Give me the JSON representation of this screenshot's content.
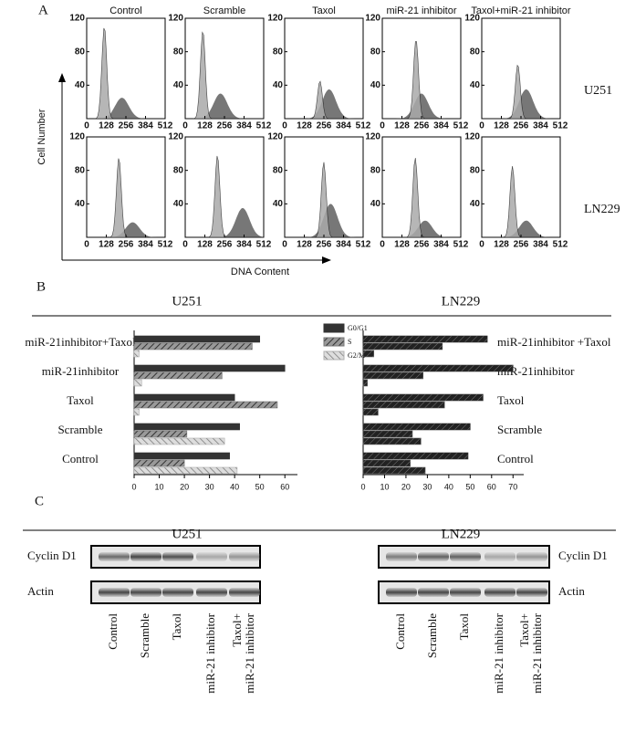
{
  "panel_a": {
    "label": "A",
    "columns": [
      "Control",
      "Scramble",
      "Taxol",
      "miR-21 inhibitor",
      "Taxol+miR-21 inhibitor"
    ],
    "y_label": "Cell Number",
    "x_label": "DNA Content",
    "xlim": [
      0,
      512
    ],
    "xticks": [
      0,
      128,
      256,
      384,
      512
    ],
    "ylim": [
      0,
      120
    ],
    "yticks": [
      40,
      80,
      120
    ],
    "rows": [
      {
        "name": "U251",
        "histograms": [
          {
            "g1": {
              "x": 115,
              "y": 110
            },
            "g2": {
              "x": 230,
              "y": 25
            }
          },
          {
            "g1": {
              "x": 115,
              "y": 105
            },
            "g2": {
              "x": 230,
              "y": 30
            }
          },
          {
            "g1": {
              "x": 230,
              "y": 45
            },
            "g2": {
              "x": 290,
              "y": 35
            }
          },
          {
            "g1": {
              "x": 220,
              "y": 95
            },
            "g2": {
              "x": 255,
              "y": 30
            }
          },
          {
            "g1": {
              "x": 235,
              "y": 65
            },
            "g2": {
              "x": 290,
              "y": 35
            }
          }
        ]
      },
      {
        "name": "LN229",
        "histograms": [
          {
            "g1": {
              "x": 210,
              "y": 95
            },
            "g2": {
              "x": 300,
              "y": 18
            }
          },
          {
            "g1": {
              "x": 210,
              "y": 98
            },
            "g2": {
              "x": 375,
              "y": 35
            }
          },
          {
            "g1": {
              "x": 255,
              "y": 90
            },
            "g2": {
              "x": 300,
              "y": 40
            }
          },
          {
            "g1": {
              "x": 215,
              "y": 95
            },
            "g2": {
              "x": 280,
              "y": 20
            }
          },
          {
            "g1": {
              "x": 200,
              "y": 85
            },
            "g2": {
              "x": 290,
              "y": 20
            }
          }
        ]
      }
    ]
  },
  "panel_b_label": "B",
  "chart_data": [
    {
      "type": "bar",
      "orientation": "horizontal",
      "title": "U251",
      "categories": [
        "miR-21inhibitor+Taxol",
        "miR-21inhibitor",
        "Taxol",
        "Scramble",
        "Control"
      ],
      "series": [
        {
          "name": "G0/G1",
          "color": "#333333",
          "values": [
            50,
            60,
            40,
            42,
            38
          ]
        },
        {
          "name": "S",
          "color": "#777777",
          "values": [
            47,
            35,
            57,
            21,
            20
          ]
        },
        {
          "name": "G2/M",
          "color": "#b0b0b0",
          "values": [
            2,
            3,
            2,
            36,
            41
          ]
        }
      ],
      "xlim": [
        0,
        65
      ],
      "xticks": [
        0,
        10,
        20,
        30,
        40,
        50,
        60
      ]
    },
    {
      "type": "bar",
      "orientation": "horizontal",
      "title": "LN229",
      "categories": [
        "miR-21inhibitor +Taxol",
        "miR-21inhibitor",
        "Taxol",
        "Scramble",
        "Control"
      ],
      "series": [
        {
          "color": "#333333",
          "values": [
            58,
            70,
            56,
            50,
            49
          ]
        },
        {
          "color": "#555555",
          "values": [
            37,
            28,
            38,
            23,
            22
          ]
        },
        {
          "color": "#666666",
          "values": [
            5,
            2,
            7,
            27,
            29
          ]
        }
      ],
      "xlim": [
        0,
        75
      ],
      "xticks": [
        0,
        10,
        20,
        30,
        40,
        50,
        60,
        70
      ]
    }
  ],
  "panel_c": {
    "label": "C",
    "blots": [
      {
        "title": "U251",
        "rows": [
          "Cyclin D1",
          "Actin"
        ],
        "lanes": [
          "Control",
          "Scramble",
          "Taxol",
          "miR-21 inhibitor",
          [
            "Taxol+",
            "miR-21 inhibitor"
          ]
        ]
      },
      {
        "title": "LN229",
        "rows": [
          "Cyclin D1",
          "Actin"
        ],
        "lanes": [
          "Control",
          "Scramble",
          "Taxol",
          "miR-21 inhibitor",
          [
            "Taxol+",
            "miR-21 inhibitor"
          ]
        ]
      }
    ]
  }
}
